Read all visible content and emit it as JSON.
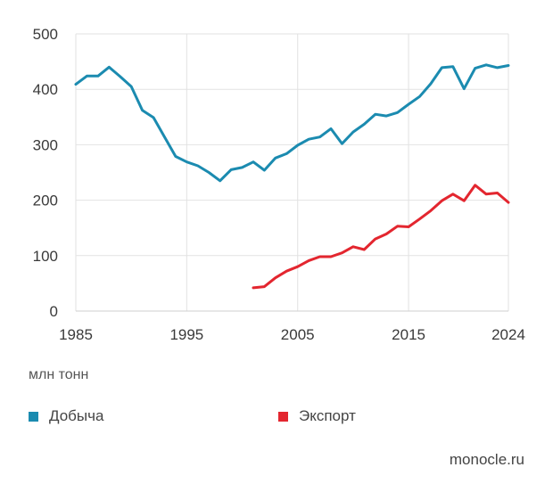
{
  "chart_data": {
    "type": "line",
    "unit_label": "млн тонн",
    "xlim": [
      1985,
      2024
    ],
    "ylim": [
      0,
      500
    ],
    "x_ticks": [
      1985,
      1995,
      2005,
      2015,
      2024
    ],
    "y_ticks": [
      0,
      100,
      200,
      300,
      400,
      500
    ],
    "grid": true,
    "legend_position": "bottom",
    "series": [
      {
        "name": "Добыча",
        "color": "#1b8bb0",
        "x": [
          1985,
          1986,
          1987,
          1988,
          1989,
          1990,
          1991,
          1992,
          1993,
          1994,
          1995,
          1996,
          1997,
          1998,
          1999,
          2000,
          2001,
          2002,
          2003,
          2004,
          2005,
          2006,
          2007,
          2008,
          2009,
          2010,
          2011,
          2012,
          2013,
          2014,
          2015,
          2016,
          2017,
          2018,
          2019,
          2020,
          2021,
          2022,
          2023,
          2024
        ],
        "y": [
          409,
          424,
          424,
          440,
          423,
          405,
          362,
          349,
          314,
          279,
          269,
          262,
          250,
          235,
          255,
          259,
          269,
          254,
          276,
          284,
          299,
          310,
          314,
          329,
          302,
          323,
          337,
          355,
          352,
          358,
          373,
          387,
          410,
          439,
          441,
          401,
          438,
          444,
          439,
          443
        ]
      },
      {
        "name": "Экспорт",
        "color": "#e3262f",
        "x": [
          2001,
          2002,
          2003,
          2004,
          2005,
          2006,
          2007,
          2008,
          2009,
          2010,
          2011,
          2012,
          2013,
          2014,
          2015,
          2016,
          2017,
          2018,
          2019,
          2020,
          2021,
          2022,
          2023,
          2024
        ],
        "y": [
          42,
          44,
          60,
          72,
          80,
          91,
          98,
          98,
          105,
          116,
          111,
          130,
          139,
          153,
          152,
          166,
          181,
          199,
          211,
          199,
          227,
          211,
          213,
          196
        ]
      }
    ]
  },
  "source": "monocle.ru"
}
